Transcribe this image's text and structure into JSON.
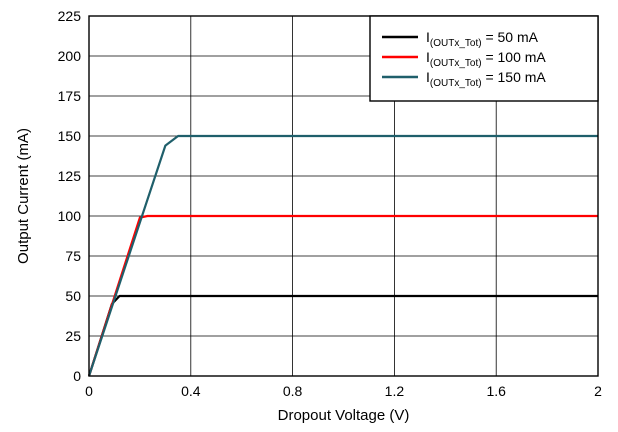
{
  "chart_data": {
    "type": "line",
    "title": "",
    "xlabel": "Dropout Voltage (V)",
    "ylabel": "Output Current (mA)",
    "xlim": [
      0,
      2
    ],
    "ylim": [
      0,
      225
    ],
    "x_ticks": [
      0,
      0.4,
      0.8,
      1.2,
      1.6,
      2
    ],
    "x_tick_labels": [
      "0",
      "0.4",
      "0.8",
      "1.2",
      "1.6",
      "2"
    ],
    "y_ticks": [
      0,
      25,
      50,
      75,
      100,
      125,
      150,
      175,
      200,
      225
    ],
    "y_tick_labels": [
      "0",
      "25",
      "50",
      "75",
      "100",
      "125",
      "150",
      "175",
      "200",
      "225"
    ],
    "grid": true,
    "legend_position": "top-right",
    "series": [
      {
        "name": "I(OUTx_Tot) = 50 mA",
        "legend_main": "I",
        "legend_sub": "(OUTx_Tot)",
        "legend_suffix": " = 50 mA",
        "color": "#000000",
        "x": [
          0,
          0.09,
          0.12,
          2
        ],
        "y": [
          0,
          45,
          50,
          50
        ]
      },
      {
        "name": "I(OUTx_Tot) = 100 mA",
        "legend_main": "I",
        "legend_sub": "(OUTx_Tot)",
        "legend_suffix": " = 100 mA",
        "color": "#ff0000",
        "x": [
          0,
          0.2,
          0.23,
          2
        ],
        "y": [
          0,
          99,
          100,
          100
        ]
      },
      {
        "name": "I(OUTx_Tot) = 150 mA",
        "legend_main": "I",
        "legend_sub": "(OUTx_Tot)",
        "legend_suffix": " = 150 mA",
        "color": "#1f5f6b",
        "x": [
          0,
          0.3,
          0.35,
          2
        ],
        "y": [
          0,
          144,
          150,
          150
        ]
      }
    ]
  }
}
